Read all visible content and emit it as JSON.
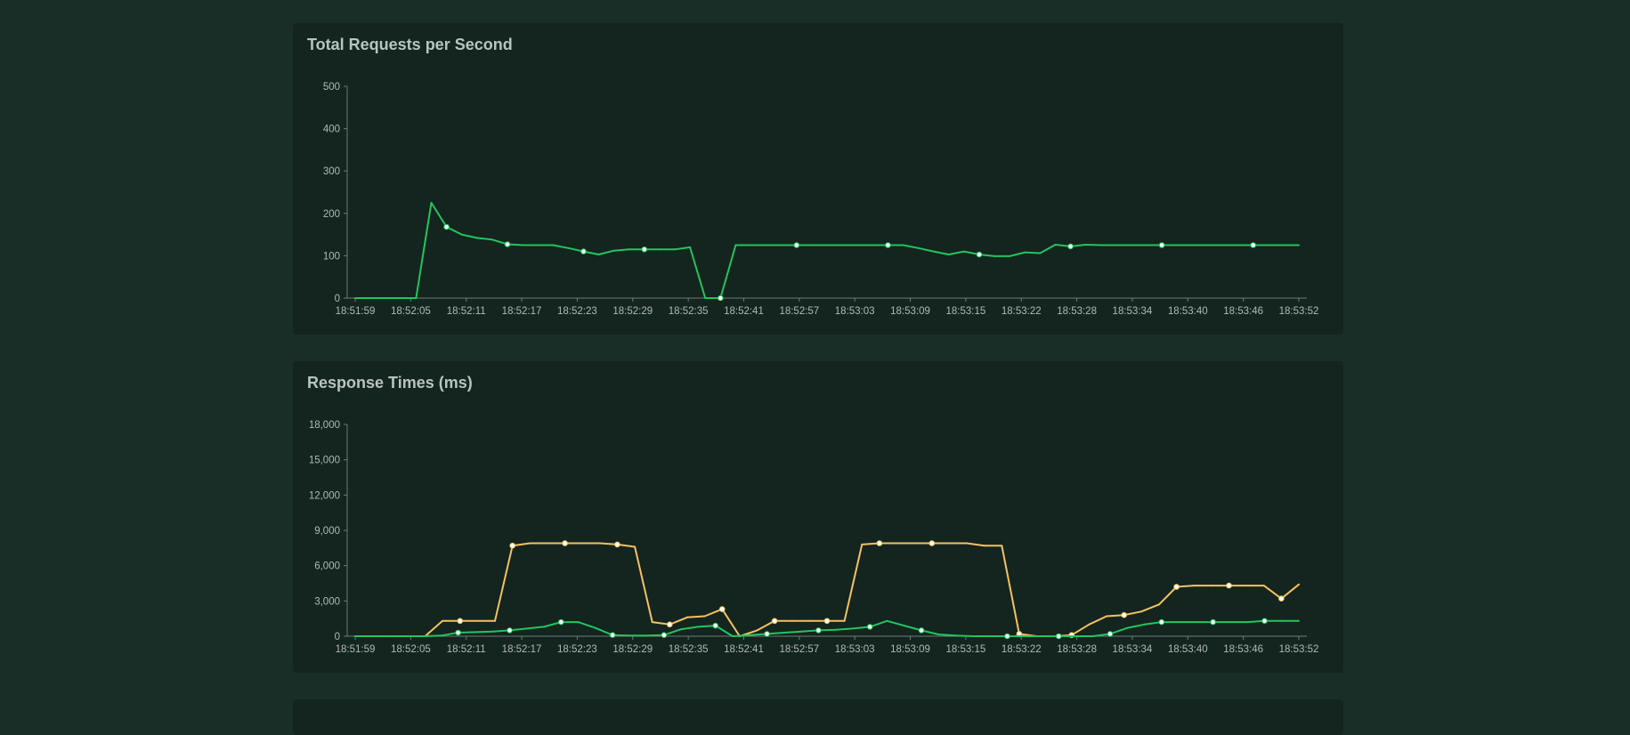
{
  "colors": {
    "background": "#1a2e28",
    "panel": "#14241f",
    "series_green": "#22c55e",
    "series_yellow": "#f5c260"
  },
  "chart_data": [
    {
      "type": "line",
      "title": "Total Requests per Second",
      "xlabel": "",
      "ylabel": "",
      "x_ticks": [
        "18:51:59",
        "18:52:05",
        "18:52:11",
        "18:52:17",
        "18:52:23",
        "18:52:29",
        "18:52:35",
        "18:52:41",
        "18:52:57",
        "18:53:03",
        "18:53:09",
        "18:53:15",
        "18:53:22",
        "18:53:28",
        "18:53:34",
        "18:53:40",
        "18:53:46",
        "18:53:52"
      ],
      "y_ticks": [
        "0",
        "100",
        "200",
        "300",
        "400",
        "500"
      ],
      "ylim": [
        0,
        500
      ],
      "grid": false,
      "series": [
        {
          "color": "#22c55e",
          "values": [
            0,
            0,
            0,
            0,
            0,
            225,
            168,
            150,
            142,
            138,
            127,
            125,
            125,
            125,
            118,
            110,
            103,
            112,
            115,
            115,
            115,
            115,
            120,
            0,
            0,
            125,
            125,
            125,
            125,
            125,
            125,
            125,
            125,
            125,
            125,
            125,
            125,
            118,
            110,
            103,
            110,
            103,
            99,
            99,
            108,
            106,
            126,
            122,
            126,
            125,
            125,
            125,
            125,
            125,
            125,
            125,
            125,
            125,
            125,
            125,
            125,
            125,
            125
          ],
          "markers": [
            6,
            10,
            15,
            19,
            24,
            29,
            35,
            41,
            47,
            53,
            59,
            65,
            71,
            77,
            83,
            89
          ]
        }
      ]
    },
    {
      "type": "line",
      "title": "Response Times (ms)",
      "xlabel": "",
      "ylabel": "",
      "x_ticks": [
        "18:51:59",
        "18:52:05",
        "18:52:11",
        "18:52:17",
        "18:52:23",
        "18:52:29",
        "18:52:35",
        "18:52:41",
        "18:52:57",
        "18:53:03",
        "18:53:09",
        "18:53:15",
        "18:53:22",
        "18:53:28",
        "18:53:34",
        "18:53:40",
        "18:53:46",
        "18:53:52"
      ],
      "y_ticks": [
        "0",
        "3,000",
        "6,000",
        "9,000",
        "12,000",
        "15,000",
        "18,000"
      ],
      "ylim": [
        0,
        18000
      ],
      "grid": false,
      "series": [
        {
          "color": "#f5c260",
          "values": [
            0,
            0,
            0,
            0,
            0,
            1300,
            1300,
            1300,
            1300,
            7700,
            7900,
            7900,
            7900,
            7900,
            7900,
            7800,
            7600,
            1200,
            1000,
            1600,
            1700,
            2300,
            0,
            500,
            1300,
            1300,
            1300,
            1300,
            1300,
            7800,
            7900,
            7900,
            7900,
            7900,
            7900,
            7900,
            7700,
            7700,
            200,
            0,
            0,
            100,
            1000,
            1700,
            1800,
            2100,
            2700,
            4200,
            4300,
            4300,
            4300,
            4300,
            4300,
            3200,
            4400
          ],
          "markers": [
            6,
            9,
            12,
            15,
            18,
            21,
            24,
            27,
            30,
            33,
            38,
            41,
            44,
            47,
            50,
            53
          ]
        },
        {
          "color": "#22c55e",
          "values": [
            0,
            0,
            0,
            0,
            0,
            50,
            300,
            350,
            400,
            500,
            650,
            800,
            1200,
            1200,
            700,
            100,
            50,
            50,
            100,
            600,
            800,
            900,
            0,
            100,
            200,
            300,
            400,
            500,
            550,
            650,
            800,
            1300,
            900,
            500,
            150,
            50,
            0,
            0,
            0,
            0,
            0,
            0,
            0,
            0,
            200,
            700,
            1000,
            1200,
            1200,
            1200,
            1200,
            1200,
            1200,
            1300,
            1300,
            1300
          ],
          "markers": [
            6,
            9,
            12,
            15,
            18,
            21,
            24,
            27,
            30,
            33,
            38,
            41,
            44,
            47,
            50,
            53
          ]
        }
      ]
    }
  ]
}
